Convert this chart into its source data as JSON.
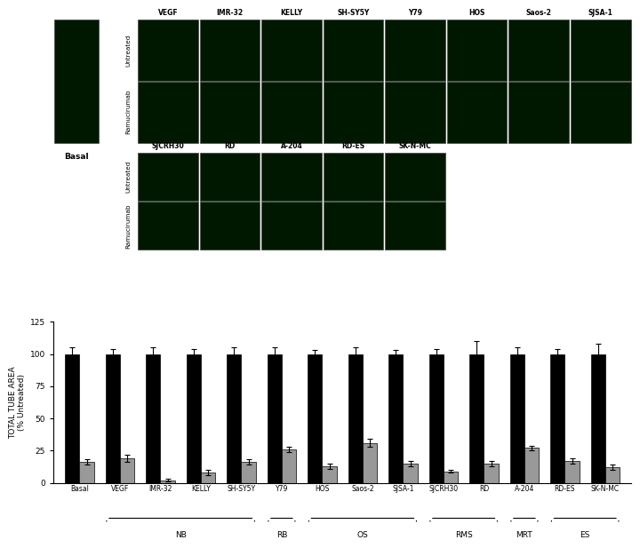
{
  "bar_categories": [
    "Basal",
    "VEGF",
    "IMR-32",
    "KELLY",
    "SH-SY5Y",
    "Y79",
    "HOS",
    "Saos-2",
    "SJSA-1",
    "SJCRH30",
    "RD",
    "A-204",
    "RD-ES",
    "SK-N-MC"
  ],
  "untreated_values": [
    100,
    100,
    100,
    100,
    100,
    100,
    100,
    100,
    100,
    100,
    100,
    100,
    100,
    100
  ],
  "untreated_errors": [
    5,
    4,
    5,
    4,
    5,
    5,
    3,
    5,
    3,
    4,
    10,
    5,
    4,
    8
  ],
  "treated_values": [
    16,
    19,
    2,
    8,
    16,
    26,
    13,
    31,
    15,
    9,
    15,
    27,
    17,
    12
  ],
  "treated_errors": [
    2,
    3,
    1,
    2,
    2,
    2,
    2,
    3,
    2,
    1,
    2,
    2,
    2,
    2
  ],
  "ylabel": "TOTAL TUBE AREA\n(% Untreated)",
  "ylim": [
    0,
    125
  ],
  "yticks": [
    0,
    25,
    50,
    75,
    100,
    125
  ],
  "bar_color_black": "#000000",
  "bar_color_gray": "#999999",
  "bg_color": "#ffffff",
  "figure_bg": "#ffffff",
  "micro_bg_color": "#001800",
  "top_col_labels": [
    "VEGF",
    "IMR-32",
    "KELLY",
    "SH-SY5Y",
    "Y79",
    "HOS",
    "Saos-2",
    "SJSA-1"
  ],
  "bot_col_labels": [
    "SJCRH30",
    "RD",
    "A-204",
    "RD-ES",
    "SK-N-MC"
  ],
  "row_labels": [
    "Untreated",
    "Ramucirumab"
  ],
  "groups": [
    [
      "NB",
      1,
      4
    ],
    [
      "RB",
      5,
      5
    ],
    [
      "OS",
      6,
      8
    ],
    [
      "RMS",
      9,
      10
    ],
    [
      "MRT",
      11,
      11
    ],
    [
      "ES",
      12,
      13
    ]
  ],
  "basal_label": "Basal"
}
